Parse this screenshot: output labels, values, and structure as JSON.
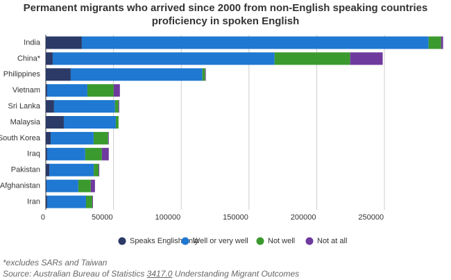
{
  "chart_data": {
    "type": "stacked-barh",
    "title": "Permanent migrants who arrived since 2000 from non-English speaking countries proficiency in spoken English",
    "categories": [
      "India",
      "China*",
      "Philippines",
      "Vietnam",
      "Sri Lanka",
      "Malaysia",
      "South Korea",
      "Iraq",
      "Pakistan",
      "Afghanistan",
      "Iran"
    ],
    "series": [
      {
        "name": "Speaks English only",
        "color": "#2b3a67",
        "values": [
          26600,
          5100,
          18400,
          1000,
          6100,
          13300,
          3600,
          1000,
          2600,
          500,
          1000
        ]
      },
      {
        "name": "Well or very well",
        "color": "#1f78d1",
        "values": [
          256000,
          163800,
          97200,
          29700,
          45000,
          38400,
          31700,
          28100,
          32800,
          23500,
          28700
        ]
      },
      {
        "name": "Not well",
        "color": "#3a9a2e",
        "values": [
          9200,
          55800,
          2000,
          19400,
          2600,
          2000,
          10700,
          12300,
          3600,
          9200,
          4600
        ]
      },
      {
        "name": "Not at all",
        "color": "#6f3a9e",
        "values": [
          1500,
          24000,
          500,
          4600,
          500,
          0,
          500,
          5100,
          500,
          3100,
          500
        ]
      }
    ],
    "xlim": [
      0,
      294000
    ],
    "xticks": [
      0,
      50000,
      100000,
      150000,
      200000,
      250000
    ],
    "grid": true,
    "note": "*excludes SARs and Taiwan",
    "source": {
      "prefix": "Source: Australian Bureau of Statistics",
      "link": "3417.0",
      "suffix": "Understanding Migrant Outcomes"
    }
  }
}
